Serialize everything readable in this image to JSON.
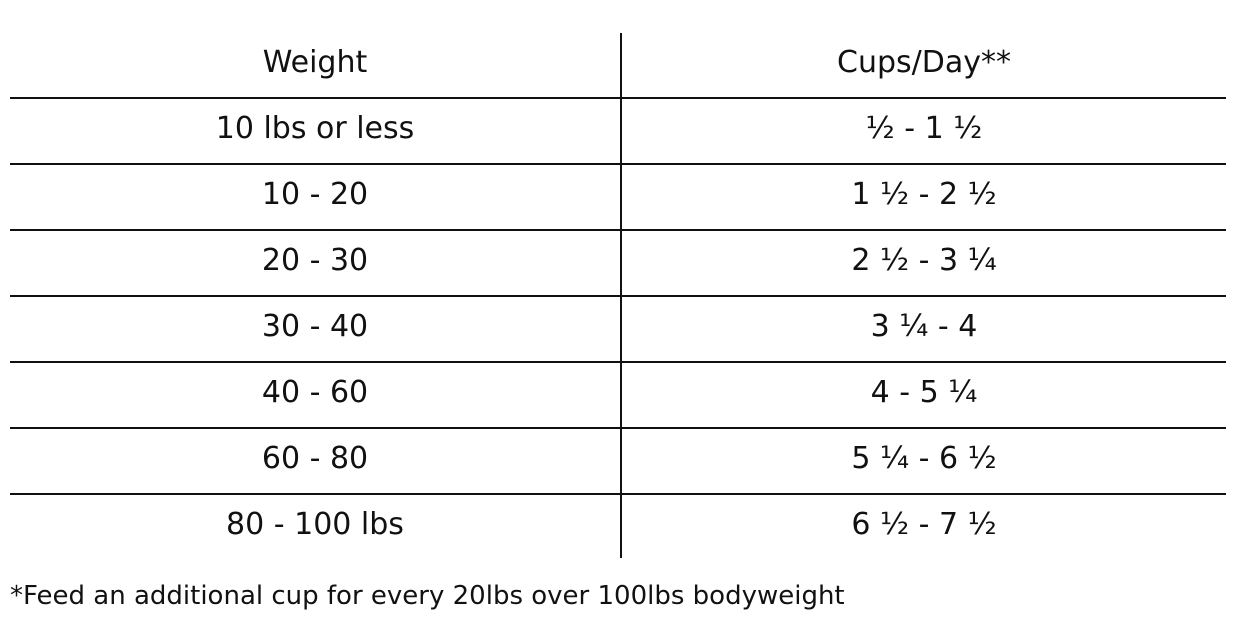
{
  "table": {
    "header": [
      "Weight",
      "Cups/Day**"
    ],
    "rows": [
      [
        "10 lbs or less",
        "½ - 1 ½"
      ],
      [
        "10 - 20",
        "1 ½ - 2 ½"
      ],
      [
        "20 - 30",
        "2 ½ - 3 ¼"
      ],
      [
        "30 - 40",
        "3 ¼ - 4"
      ],
      [
        "40 - 60",
        "4 - 5 ¼"
      ],
      [
        "60 - 80",
        "5 ¼ - 6 ½"
      ],
      [
        "80 - 100 lbs",
        "6 ½ - 7 ½"
      ]
    ]
  },
  "footnote": "*Feed an additional cup for every 20lbs over 100lbs bodyweight"
}
